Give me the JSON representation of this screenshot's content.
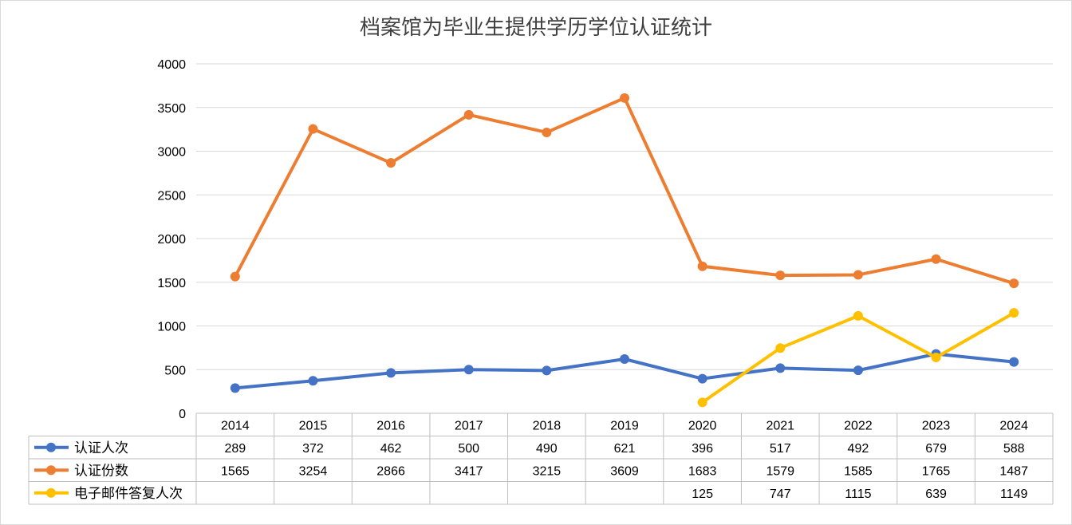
{
  "chart_data": {
    "type": "line",
    "title": "档案馆为毕业生提供学历学位认证统计",
    "x": [
      "2014",
      "2015",
      "2016",
      "2017",
      "2018",
      "2019",
      "2020",
      "2021",
      "2022",
      "2023",
      "2024"
    ],
    "ylim": [
      0,
      4000
    ],
    "yticks": [
      0,
      500,
      1000,
      1500,
      2000,
      2500,
      3000,
      3500,
      4000
    ],
    "grid": true,
    "legend": "data-table",
    "series": [
      {
        "name": "认证人次",
        "color": "#4472c4",
        "values": [
          289,
          372,
          462,
          500,
          490,
          621,
          396,
          517,
          492,
          679,
          588
        ]
      },
      {
        "name": "认证份数",
        "color": "#ed7d31",
        "values": [
          1565,
          3254,
          2866,
          3417,
          3215,
          3609,
          1683,
          1579,
          1585,
          1765,
          1487
        ]
      },
      {
        "name": "电子邮件答复人次",
        "color": "#ffc000",
        "values": [
          null,
          null,
          null,
          null,
          null,
          null,
          125,
          747,
          1115,
          639,
          1149
        ]
      }
    ]
  }
}
